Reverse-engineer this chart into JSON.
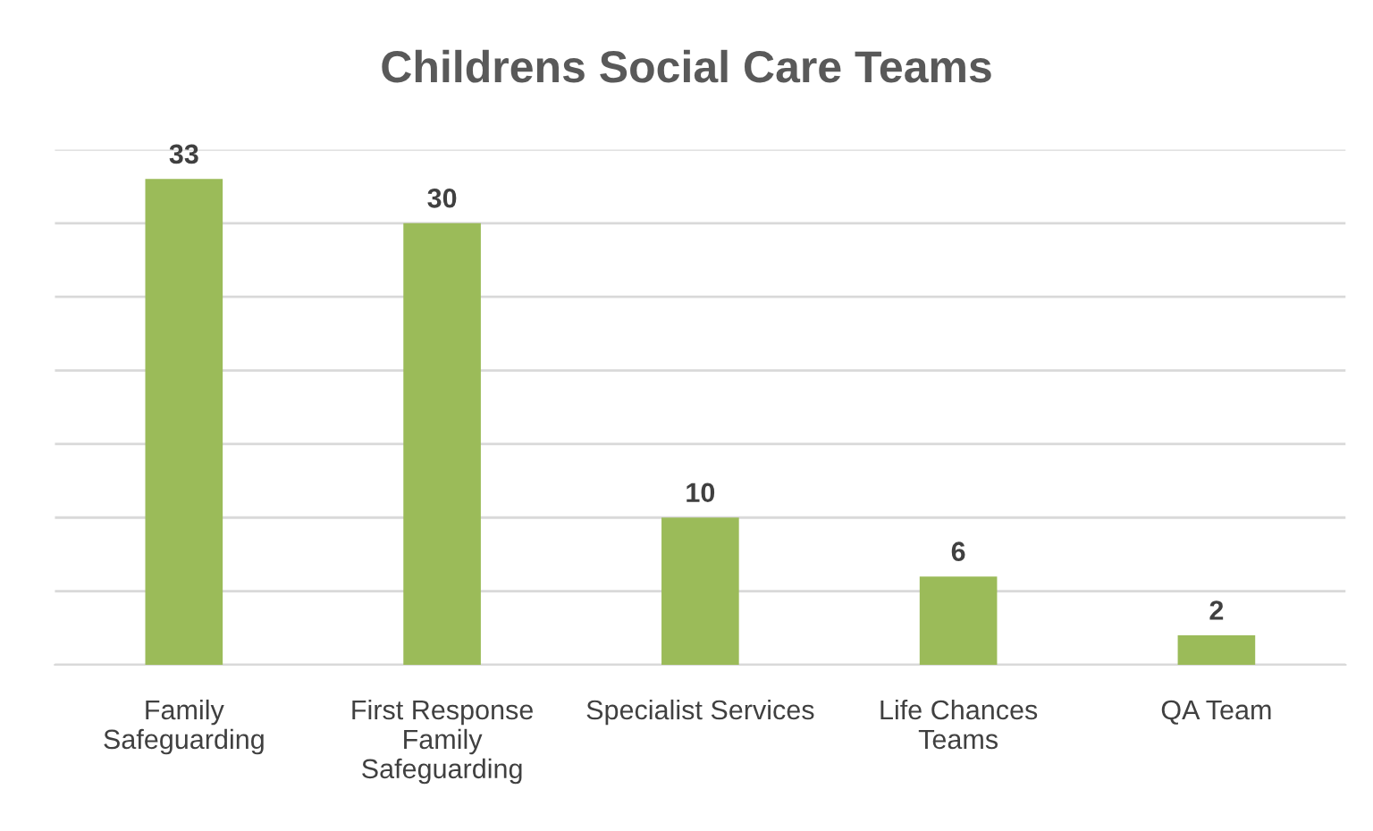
{
  "chart_data": {
    "type": "bar",
    "title": "Childrens Social Care Teams",
    "categories": [
      "Family\nSafeguarding",
      "First Response\nFamily\nSafeguarding",
      "Specialist Services",
      "Life Chances\nTeams",
      "QA Team"
    ],
    "values": [
      33,
      30,
      10,
      6,
      2
    ],
    "color": "#9bbb59",
    "ylim": [
      0,
      35
    ],
    "yticks": [
      {
        "value": 0,
        "label": null
      },
      {
        "value": 5,
        "label": null
      },
      {
        "value": 10,
        "label": null
      },
      {
        "value": 15,
        "label": null
      },
      {
        "value": 20,
        "label": null
      },
      {
        "value": 25,
        "label": null
      },
      {
        "value": 30,
        "label": null
      },
      {
        "value": 35,
        "label": null
      }
    ],
    "grid": "y",
    "data_labels": true,
    "tick_labels": "x"
  }
}
